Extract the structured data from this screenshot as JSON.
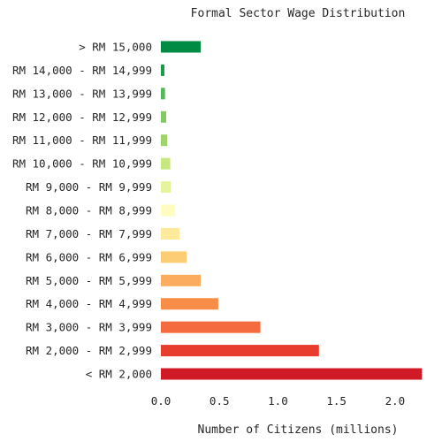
{
  "chart_data": {
    "type": "bar",
    "orientation": "horizontal",
    "title": "Formal Sector Wage Distribution",
    "xlabel": "Number of Citizens (millions)",
    "ylabel": "",
    "xlim": [
      0,
      2.25
    ],
    "xticks": [
      0.0,
      0.5,
      1.0,
      1.5,
      2.0
    ],
    "xtick_labels": [
      "0.0",
      "0.5",
      "1.0",
      "1.5",
      "2.0"
    ],
    "grid": false,
    "categories": [
      "> RM 15,000",
      "RM 14,000 - RM 14,999",
      "RM 13,000 - RM 13,999",
      "RM 12,000 - RM 12,999",
      "RM 11,000 - RM 11,999",
      "RM 10,000 - RM 10,999",
      "RM 9,000 - RM 9,999",
      "RM 8,000 - RM 8,999",
      "RM 7,000 - RM 7,999",
      "RM 6,000 - RM 6,999",
      "RM 5,000 - RM 5,999",
      "RM 4,000 - RM 4,999",
      "RM 3,000 - RM 3,999",
      "RM 2,000 - RM 2,999",
      "< RM 2,000"
    ],
    "values": [
      0.34,
      0.03,
      0.035,
      0.045,
      0.055,
      0.08,
      0.085,
      0.12,
      0.16,
      0.22,
      0.34,
      0.49,
      0.85,
      1.35,
      2.23
    ],
    "colors": [
      "#008b44",
      "#1a9a4b",
      "#57b65a",
      "#84ca63",
      "#9fd46c",
      "#c7e77f",
      "#e6f59d",
      "#fffdbf",
      "#feea9a",
      "#fdcd76",
      "#fcac5f",
      "#f88d48",
      "#f46b40",
      "#e73c2e",
      "#d01b27"
    ]
  }
}
